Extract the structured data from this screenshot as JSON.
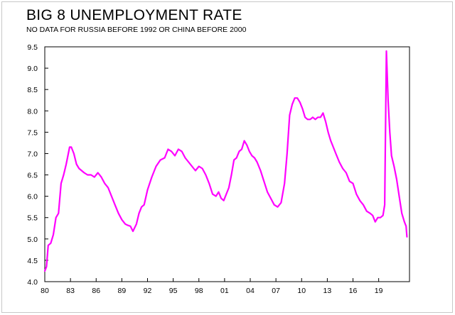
{
  "chart_data": {
    "type": "line",
    "title": "BIG 8 UNEMPLOYMENT RATE",
    "subtitle": "NO DATA FOR RUSSIA BEFORE 1992 OR CHINA BEFORE 2000",
    "xlabel": "",
    "ylabel": "",
    "xlim": [
      1980,
      2022.6
    ],
    "ylim": [
      4.0,
      9.5
    ],
    "x_tick_labels": [
      "80",
      "83",
      "86",
      "89",
      "92",
      "95",
      "98",
      "01",
      "04",
      "07",
      "10",
      "13",
      "16",
      "19"
    ],
    "x_tick_values": [
      1980,
      1983,
      1986,
      1989,
      1992,
      1995,
      1998,
      2001,
      2004,
      2007,
      2010,
      2013,
      2016,
      2019
    ],
    "y_tick_labels": [
      "4.0",
      "4.5",
      "5.0",
      "5.5",
      "6.0",
      "6.5",
      "7.0",
      "7.5",
      "8.0",
      "8.5",
      "9.0",
      "9.5"
    ],
    "y_tick_values": [
      4.0,
      4.5,
      5.0,
      5.5,
      6.0,
      6.5,
      7.0,
      7.5,
      8.0,
      8.5,
      9.0,
      9.5
    ],
    "grid": false,
    "legend": "none",
    "line_color": "#ff00ff",
    "series": [
      {
        "x": [
          1980.0,
          1980.2,
          1980.4,
          1980.7,
          1981.0,
          1981.3,
          1981.6,
          1981.9,
          1982.2,
          1982.5,
          1982.7,
          1982.9,
          1983.1,
          1983.4,
          1983.7,
          1984.0,
          1984.3,
          1984.6,
          1985.0,
          1985.4,
          1985.8,
          1986.2,
          1986.6,
          1987.0,
          1987.4,
          1987.8,
          1988.2,
          1988.6,
          1989.0,
          1989.4,
          1989.7,
          1990.0,
          1990.3,
          1990.7,
          1991.0,
          1991.3,
          1991.6,
          1992.0,
          1992.5,
          1993.0,
          1993.5,
          1994.0,
          1994.4,
          1994.8,
          1995.2,
          1995.6,
          1996.0,
          1996.4,
          1996.8,
          1997.2,
          1997.6,
          1998.0,
          1998.4,
          1998.8,
          1999.2,
          1999.6,
          2000.0,
          2000.3,
          2000.6,
          2000.9,
          2001.2,
          2001.5,
          2001.8,
          2002.1,
          2002.4,
          2002.7,
          2003.0,
          2003.3,
          2003.6,
          2003.9,
          2004.2,
          2004.5,
          2004.8,
          2005.2,
          2005.6,
          2006.0,
          2006.4,
          2006.8,
          2007.2,
          2007.6,
          2008.0,
          2008.3,
          2008.6,
          2008.9,
          2009.2,
          2009.5,
          2009.8,
          2010.1,
          2010.4,
          2010.7,
          2011.0,
          2011.3,
          2011.6,
          2011.9,
          2012.2,
          2012.5,
          2012.8,
          2013.1,
          2013.4,
          2013.7,
          2014.0,
          2014.4,
          2014.8,
          2015.2,
          2015.6,
          2016.0,
          2016.4,
          2016.8,
          2017.2,
          2017.6,
          2018.0,
          2018.3,
          2018.6,
          2018.9,
          2019.2,
          2019.5,
          2019.7,
          2019.9,
          2020.1,
          2020.3,
          2020.5,
          2020.8,
          2021.1,
          2021.4,
          2021.7,
          2022.0,
          2022.2,
          2022.3
        ],
        "y": [
          4.25,
          4.35,
          4.85,
          4.9,
          5.1,
          5.5,
          5.6,
          6.3,
          6.5,
          6.75,
          6.95,
          7.15,
          7.15,
          7.0,
          6.75,
          6.65,
          6.6,
          6.55,
          6.5,
          6.5,
          6.45,
          6.55,
          6.45,
          6.3,
          6.2,
          6.0,
          5.8,
          5.6,
          5.45,
          5.35,
          5.32,
          5.3,
          5.18,
          5.35,
          5.6,
          5.75,
          5.8,
          6.15,
          6.45,
          6.7,
          6.85,
          6.9,
          7.1,
          7.05,
          6.95,
          7.1,
          7.05,
          6.9,
          6.8,
          6.7,
          6.6,
          6.7,
          6.65,
          6.5,
          6.3,
          6.05,
          6.0,
          6.1,
          5.95,
          5.9,
          6.05,
          6.2,
          6.5,
          6.85,
          6.9,
          7.05,
          7.1,
          7.3,
          7.2,
          7.05,
          6.95,
          6.9,
          6.8,
          6.6,
          6.35,
          6.1,
          5.95,
          5.8,
          5.75,
          5.85,
          6.3,
          7.0,
          7.9,
          8.15,
          8.3,
          8.3,
          8.2,
          8.05,
          7.85,
          7.8,
          7.8,
          7.85,
          7.8,
          7.85,
          7.85,
          7.95,
          7.75,
          7.5,
          7.3,
          7.15,
          7.0,
          6.8,
          6.65,
          6.55,
          6.35,
          6.3,
          6.05,
          5.9,
          5.8,
          5.65,
          5.6,
          5.55,
          5.4,
          5.5,
          5.5,
          5.55,
          5.8,
          9.4,
          8.25,
          7.5,
          6.95,
          6.7,
          6.4,
          6.0,
          5.6,
          5.4,
          5.3,
          5.05
        ]
      }
    ]
  }
}
